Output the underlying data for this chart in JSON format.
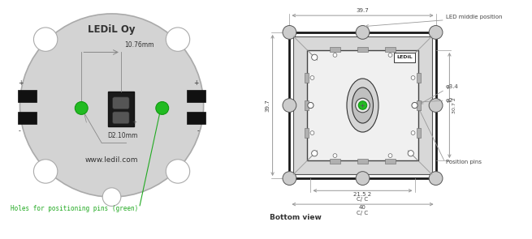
{
  "bg_color": "#ffffff",
  "pcb_color": "#d3d3d3",
  "pcb_edge": "#aaaaaa",
  "dark_color": "#333333",
  "green_color": "#22bb22",
  "dim_color": "#999999",
  "green_text_color": "#22aa22",
  "title": "LEDiL Oy",
  "website": "www.ledil.com",
  "dim_10_76": "10.76mm",
  "dim_D2_10": "D2.10mm",
  "label_holes": "Holes for positioning pins (green)",
  "label_bottom": "Bottom view",
  "label_led_mid": "LED middle position",
  "label_pos_pins": "Position pins",
  "dim_39_7_top": "39.7",
  "dim_39_7_left": "39.7",
  "dim_21_5": "21.5 2",
  "dim_cc1": "C/ C",
  "dim_40": "40",
  "dim_cc2": "C/ C",
  "dim_30_7": "30.7 2",
  "dim_phi34": "φ3.4",
  "dim_phi2": "φ2",
  "pcb2_outer_color": "#222222",
  "pcb2_inner_color": "#c8c8c8",
  "pcb2_mid_color": "#e0e0e0",
  "pcb2_tab_color": "#bbbbbb",
  "pcb2_tab_dark": "#888888"
}
